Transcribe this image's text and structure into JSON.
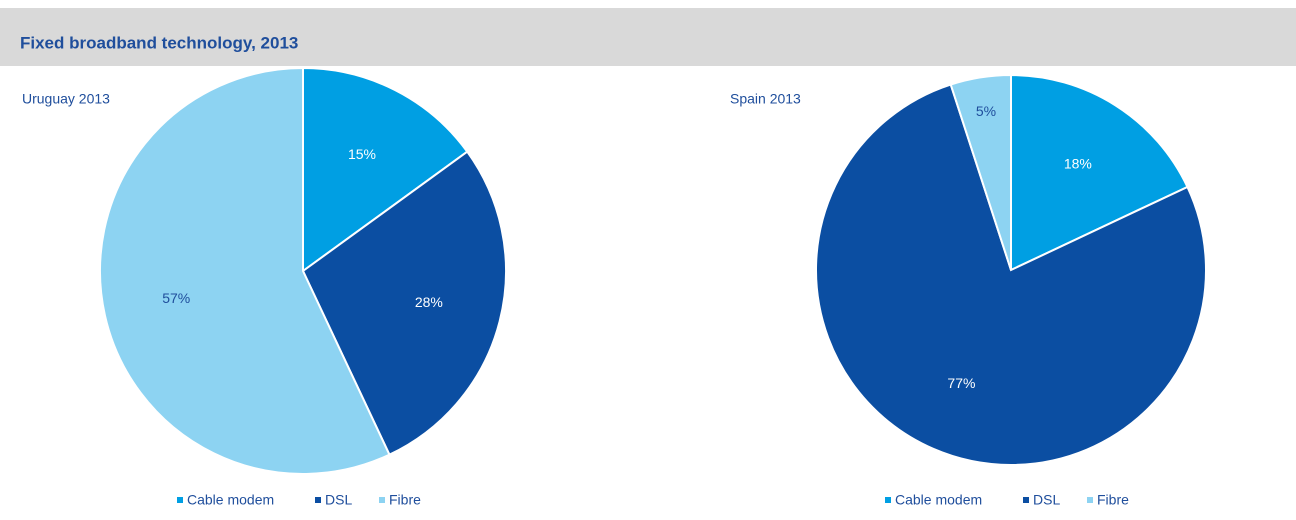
{
  "header": {
    "title": "Fixed broadband technology, 2013"
  },
  "chart_data": [
    {
      "type": "pie",
      "title": "Uruguay 2013",
      "categories": [
        "Cable modem",
        "DSL",
        "Fibre"
      ],
      "values": [
        15,
        28,
        57
      ],
      "value_labels": [
        "15%",
        "28%",
        "57%"
      ],
      "colors": [
        "#009fe3",
        "#0b4ea2",
        "#8dd3f2"
      ]
    },
    {
      "type": "pie",
      "title": "Spain 2013",
      "categories": [
        "Cable modem",
        "DSL",
        "Fibre"
      ],
      "values": [
        18,
        77,
        5
      ],
      "value_labels": [
        "18%",
        "77%",
        "5%"
      ],
      "colors": [
        "#009fe3",
        "#0b4ea2",
        "#8dd3f2"
      ]
    }
  ]
}
